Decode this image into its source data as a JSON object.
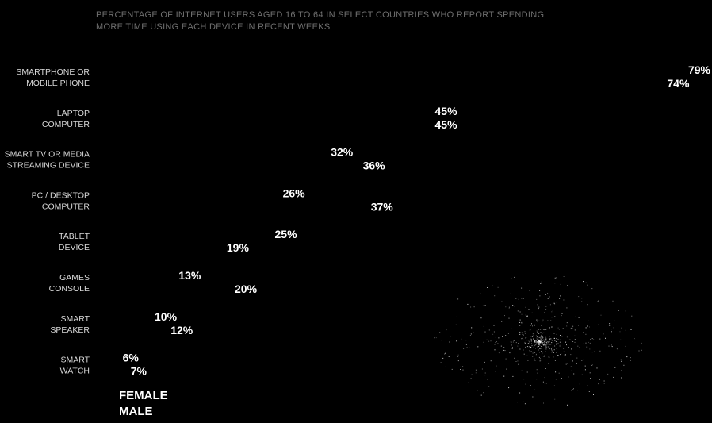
{
  "subtitle_lines": [
    "PERCENTAGE OF INTERNET USERS AGED 16 TO 64 IN SELECT COUNTRIES WHO REPORT SPENDING",
    "MORE TIME USING EACH DEVICE IN RECENT WEEKS"
  ],
  "legend": {
    "female": "FEMALE",
    "male": "MALE"
  },
  "chart_data": {
    "type": "scatter",
    "title": "",
    "categories": [
      [
        "SMARTPHONE OR",
        "MOBILE PHONE"
      ],
      [
        "LAPTOP",
        "COMPUTER"
      ],
      [
        "SMART TV OR MEDIA",
        "STREAMING DEVICE"
      ],
      [
        "PC / DESKTOP",
        "COMPUTER"
      ],
      [
        "TABLET",
        "DEVICE"
      ],
      [
        "GAMES",
        "CONSOLE"
      ],
      [
        "SMART",
        "SPEAKER"
      ],
      [
        "SMART",
        "WATCH"
      ]
    ],
    "series": [
      {
        "name": "FEMALE",
        "values": [
          79,
          45,
          32,
          26,
          25,
          13,
          10,
          6
        ]
      },
      {
        "name": "MALE",
        "values": [
          74,
          45,
          36,
          37,
          19,
          20,
          12,
          7
        ]
      }
    ],
    "value_suffix": "%",
    "xlim": [
      0,
      100
    ],
    "grid": false,
    "legend_position": "bottom-left",
    "colors": {
      "background": "#000000",
      "label": "#d8d8d8",
      "value": "#ffffff",
      "subtitle": "#6f6f6f"
    }
  }
}
